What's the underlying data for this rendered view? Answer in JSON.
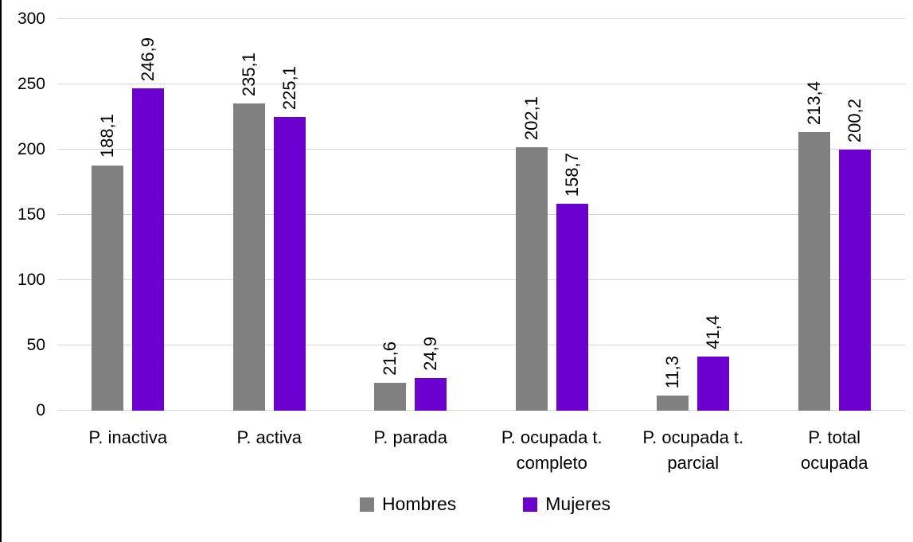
{
  "chart_data": {
    "type": "bar",
    "title": "",
    "xlabel": "",
    "ylabel": "",
    "categories": [
      "P. inactiva",
      "P. activa",
      "P. parada",
      "P. ocupada t. completo",
      "P. ocupada t. parcial",
      "P. total ocupada"
    ],
    "category_display_lines": [
      [
        "P. inactiva"
      ],
      [
        "P. activa"
      ],
      [
        "P. parada"
      ],
      [
        "P. ocupada t.",
        "completo"
      ],
      [
        "P. ocupada t.",
        "parcial"
      ],
      [
        "P. total",
        "ocupada"
      ]
    ],
    "series": [
      {
        "name": "Hombres",
        "color": "#808080",
        "values": [
          188.1,
          235.1,
          21.6,
          202.1,
          11.3,
          213.4
        ],
        "labels": [
          "188,1",
          "235,1",
          "21,6",
          "202,1",
          "11,3",
          "213,4"
        ]
      },
      {
        "name": "Mujeres",
        "color": "#6B00D0",
        "values": [
          246.9,
          225.1,
          24.9,
          158.7,
          41.4,
          200.2
        ],
        "labels": [
          "246,9",
          "225,1",
          "24,9",
          "158,7",
          "41,4",
          "200,2"
        ]
      }
    ],
    "y_axis": {
      "min": 0,
      "max": 300,
      "step": 50,
      "ticks": [
        "0",
        "50",
        "100",
        "150",
        "200",
        "250",
        "300"
      ]
    },
    "grid": true,
    "legend_position": "bottom",
    "data_label_rotation_deg": 270
  },
  "styles": {
    "background": "#FFFFFF",
    "gridline_color": "#D6D6D6",
    "axis_line_color": "#D6D6D6",
    "text_color": "#000000",
    "left_border_color": "#000000"
  }
}
